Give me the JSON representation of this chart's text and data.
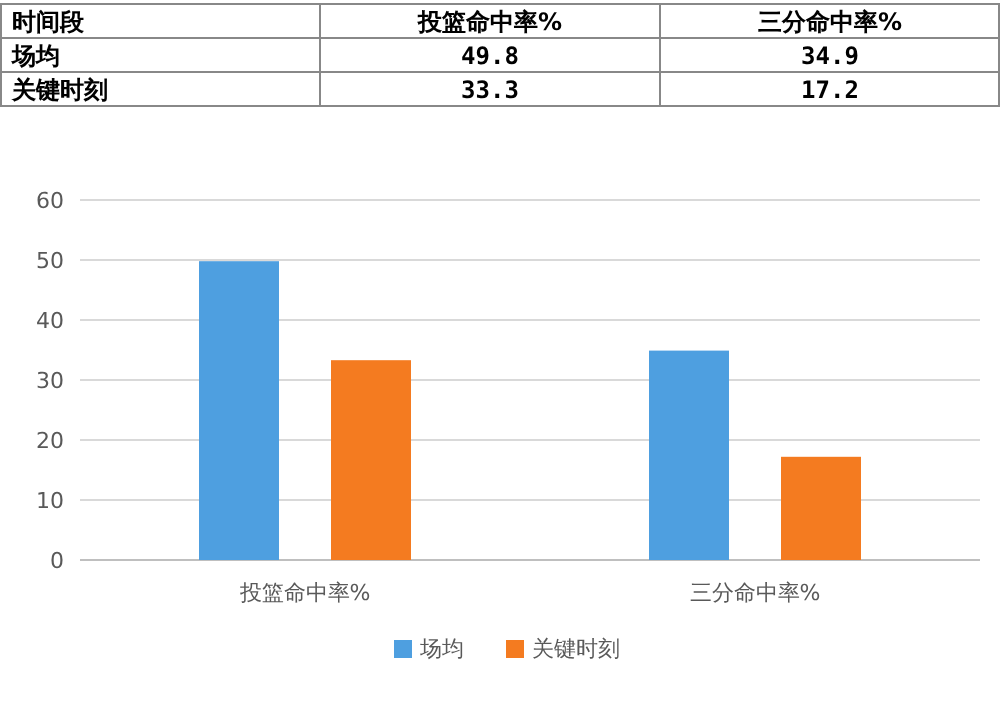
{
  "chart_data": {
    "type": "bar",
    "categories": [
      "投篮命中率%",
      "三分命中率%"
    ],
    "series": [
      {
        "name": "场均",
        "color": "#4e9fe0",
        "values": [
          49.8,
          34.9
        ]
      },
      {
        "name": "关键时刻",
        "color": "#f47b20",
        "values": [
          33.3,
          17.2
        ]
      }
    ],
    "legend_title": "时间段",
    "ylim": [
      0,
      60
    ],
    "yticks": [
      0,
      10,
      20,
      30,
      40,
      50,
      60
    ],
    "grid": "y",
    "legend": "bottom",
    "data_labels": true
  }
}
